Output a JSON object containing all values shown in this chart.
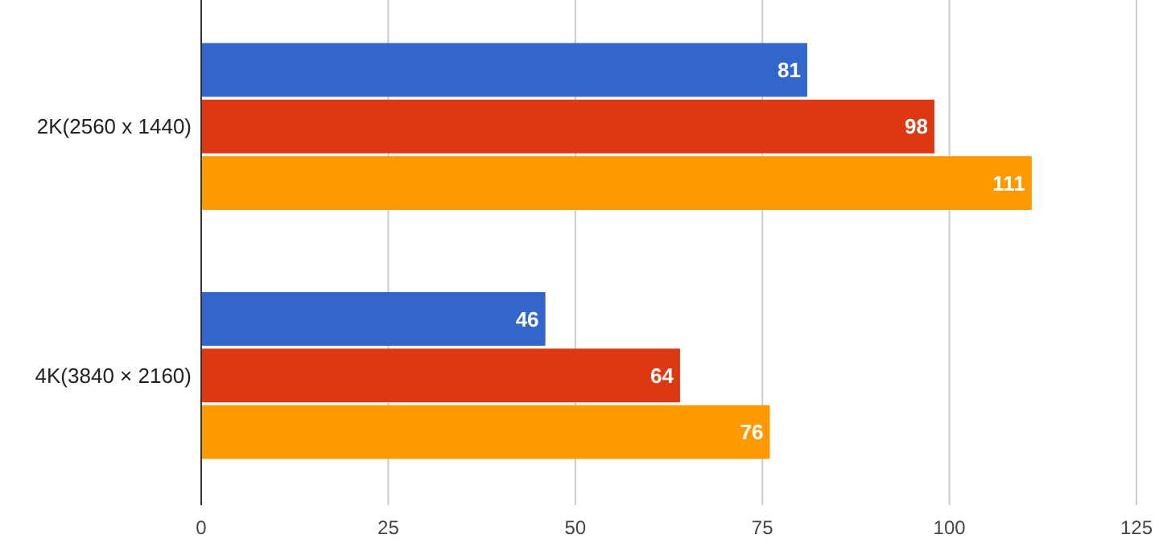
{
  "chart_data": {
    "type": "bar",
    "orientation": "horizontal",
    "categories": [
      "2K(2560 x 1440)",
      "4K(3840 × 2160)"
    ],
    "series": [
      {
        "color": "#3366cc",
        "values": [
          81,
          46
        ]
      },
      {
        "color": "#dc3912",
        "values": [
          98,
          64
        ]
      },
      {
        "color": "#ff9900",
        "values": [
          111,
          76
        ]
      }
    ],
    "xlim": [
      0,
      125
    ],
    "xticks": [
      0,
      25,
      50,
      75,
      100,
      125
    ],
    "grid": "x",
    "data_labels": true
  }
}
